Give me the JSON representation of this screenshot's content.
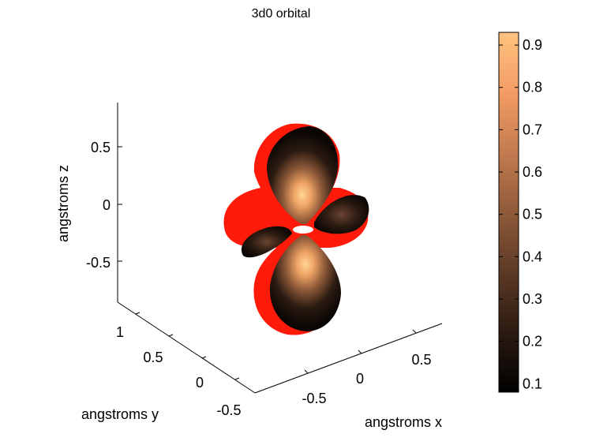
{
  "chart_data": {
    "type": "surface3d",
    "title": "3d0 orbital",
    "xlabel": "angstroms x",
    "ylabel": "angstroms y",
    "zlabel": "angstroms z",
    "x_ticks": [
      "-0.5",
      "0",
      "0.5"
    ],
    "y_ticks": [
      "-0.5",
      "0",
      "0.5",
      "1"
    ],
    "z_ticks": [
      "0.5",
      "0",
      "-0.5"
    ],
    "colorbar": {
      "colormap": "copper",
      "range": [
        0.08,
        0.93
      ],
      "ticks": [
        "0.9",
        "0.8",
        "0.7",
        "0.6",
        "0.5",
        "0.4",
        "0.3",
        "0.2",
        "0.1"
      ],
      "colors": [
        "#000000",
        "#2c1b11",
        "#5c3a25",
        "#8f5a3a",
        "#c37b4f",
        "#f39c63",
        "#ffc37f"
      ]
    },
    "surface": {
      "shape": "d_z2 orbital: two lobes along z and a torus in the xy-plane",
      "outer_color": "#ff1a0a"
    }
  }
}
